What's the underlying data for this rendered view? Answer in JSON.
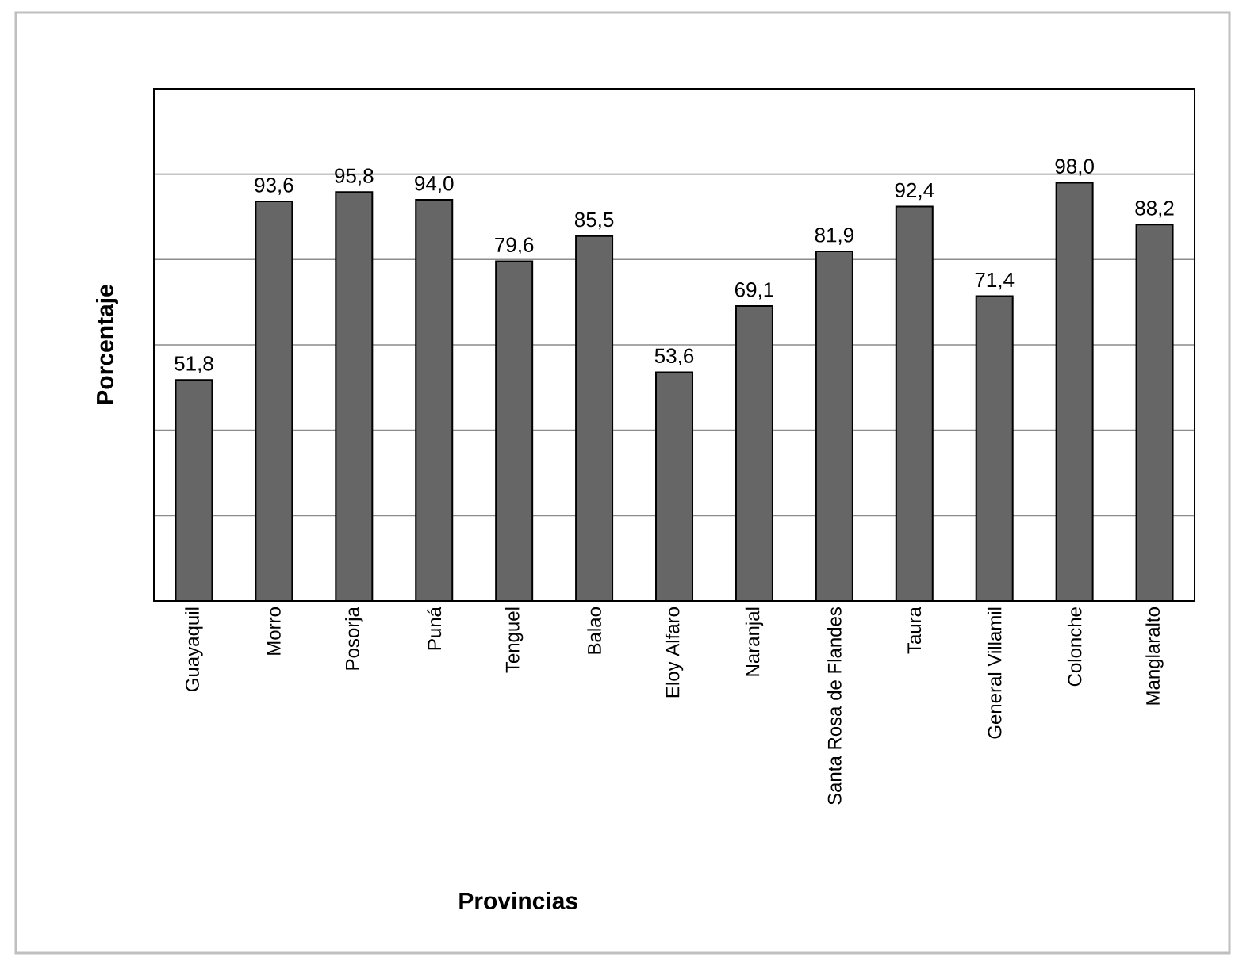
{
  "chart_data": {
    "type": "bar",
    "xlabel": "Provincias",
    "ylabel": "Porcentaje",
    "categories": [
      "Guayaquil",
      "Morro",
      "Posorja",
      "Puná",
      "Tenguel",
      "Balao",
      "Eloy Alfaro",
      "Naranjal",
      "Santa Rosa de Flandes",
      "Taura",
      "General Villamil",
      "Colonche",
      "Manglaralto"
    ],
    "values": [
      51.8,
      93.6,
      95.8,
      94.0,
      79.6,
      85.5,
      53.6,
      69.1,
      81.9,
      92.4,
      71.4,
      98.0,
      88.2
    ],
    "value_labels": [
      "51,8",
      "93,6",
      "95,8",
      "94,0",
      "79,6",
      "85,5",
      "53,6",
      "69,1",
      "81,9",
      "92,4",
      "71,4",
      "98,0",
      "88,2"
    ],
    "color": "#666666",
    "ylim": [
      0,
      120
    ],
    "yticks": [
      {
        "value": 20,
        "label": null
      },
      {
        "value": 40,
        "label": null
      },
      {
        "value": 60,
        "label": null
      },
      {
        "value": 80,
        "label": null
      },
      {
        "value": 100,
        "label": null
      }
    ],
    "grid": "y",
    "tick_labels": "x"
  }
}
